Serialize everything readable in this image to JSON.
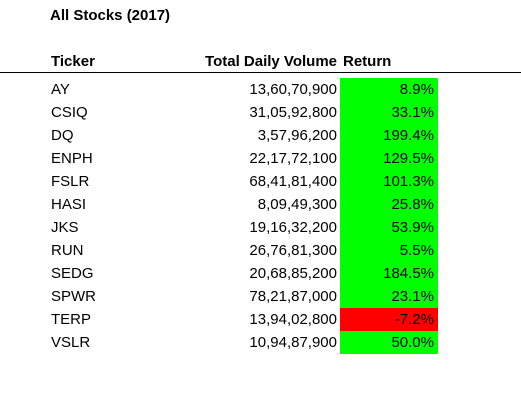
{
  "sheet": {
    "title": "All Stocks (2017)",
    "headers": {
      "ticker": "Ticker",
      "volume": "Total Daily Volume",
      "return": "Return"
    },
    "colors": {
      "positive_fill": "#00ff00",
      "negative_fill": "#ff0000"
    },
    "rows": [
      {
        "ticker": "AY",
        "volume": "13,60,70,900",
        "return": "8.9%",
        "positive": true
      },
      {
        "ticker": "CSIQ",
        "volume": "31,05,92,800",
        "return": "33.1%",
        "positive": true
      },
      {
        "ticker": "DQ",
        "volume": "3,57,96,200",
        "return": "199.4%",
        "positive": true
      },
      {
        "ticker": "ENPH",
        "volume": "22,17,72,100",
        "return": "129.5%",
        "positive": true
      },
      {
        "ticker": "FSLR",
        "volume": "68,41,81,400",
        "return": "101.3%",
        "positive": true
      },
      {
        "ticker": "HASI",
        "volume": "8,09,49,300",
        "return": "25.8%",
        "positive": true
      },
      {
        "ticker": "JKS",
        "volume": "19,16,32,200",
        "return": "53.9%",
        "positive": true
      },
      {
        "ticker": "RUN",
        "volume": "26,76,81,300",
        "return": "5.5%",
        "positive": true
      },
      {
        "ticker": "SEDG",
        "volume": "20,68,85,200",
        "return": "184.5%",
        "positive": true
      },
      {
        "ticker": "SPWR",
        "volume": "78,21,87,000",
        "return": "23.1%",
        "positive": true
      },
      {
        "ticker": "TERP",
        "volume": "13,94,02,800",
        "return": "-7.2%",
        "positive": false
      },
      {
        "ticker": "VSLR",
        "volume": "10,94,87,900",
        "return": "50.0%",
        "positive": true
      }
    ]
  }
}
